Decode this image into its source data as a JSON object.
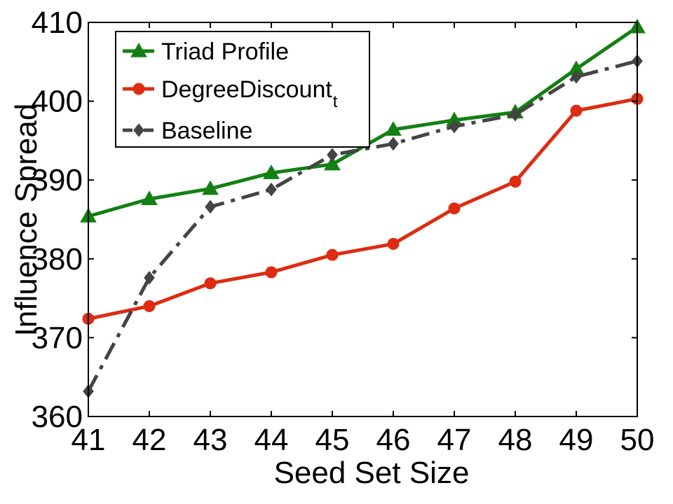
{
  "chart_data": {
    "type": "line",
    "title": "",
    "xlabel": "Seed Set Size",
    "ylabel": "Influence Spread",
    "x": [
      41,
      42,
      43,
      44,
      45,
      46,
      47,
      48,
      49,
      50
    ],
    "xlim": [
      41,
      50
    ],
    "ylim": [
      360,
      410
    ],
    "yticks": [
      360,
      370,
      380,
      390,
      400,
      410
    ],
    "grid": false,
    "legend_position": "top-left",
    "series": [
      {
        "name": "Triad Profile",
        "color": "#128012",
        "marker": "triangle",
        "linestyle": "solid",
        "values": [
          385.4,
          387.6,
          388.9,
          390.9,
          392.0,
          396.4,
          397.6,
          398.6,
          404.1,
          409.4
        ]
      },
      {
        "name": "DegreeDiscount",
        "subscript": "t",
        "color": "#dd2c12",
        "marker": "circle",
        "linestyle": "solid",
        "values": [
          372.4,
          374.0,
          376.9,
          378.3,
          380.5,
          381.9,
          386.4,
          389.8,
          398.8,
          400.3
        ]
      },
      {
        "name": "Baseline",
        "color": "#444444",
        "marker": "diamond",
        "linestyle": "dashdot",
        "values": [
          363.2,
          377.6,
          386.6,
          388.8,
          393.2,
          394.6,
          396.8,
          398.3,
          403.1,
          405.1
        ]
      }
    ]
  }
}
